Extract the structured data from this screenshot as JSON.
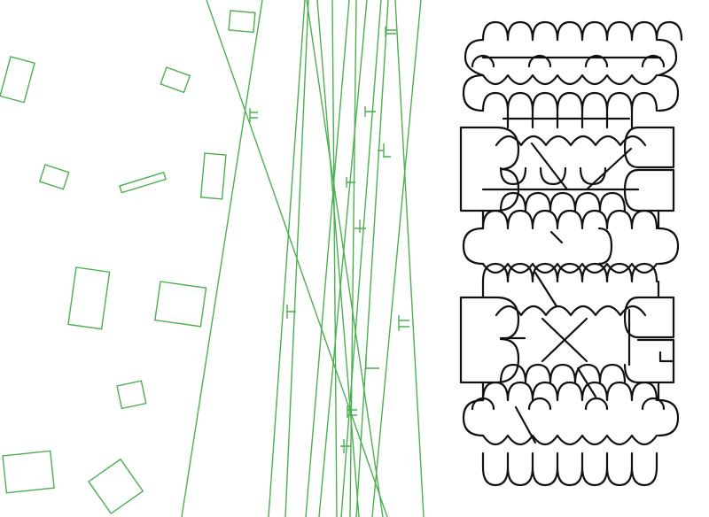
{
  "colors": {
    "background": "#ffffff",
    "scatter_stroke": "#4caf50",
    "tile_stroke": "#111111"
  }
}
